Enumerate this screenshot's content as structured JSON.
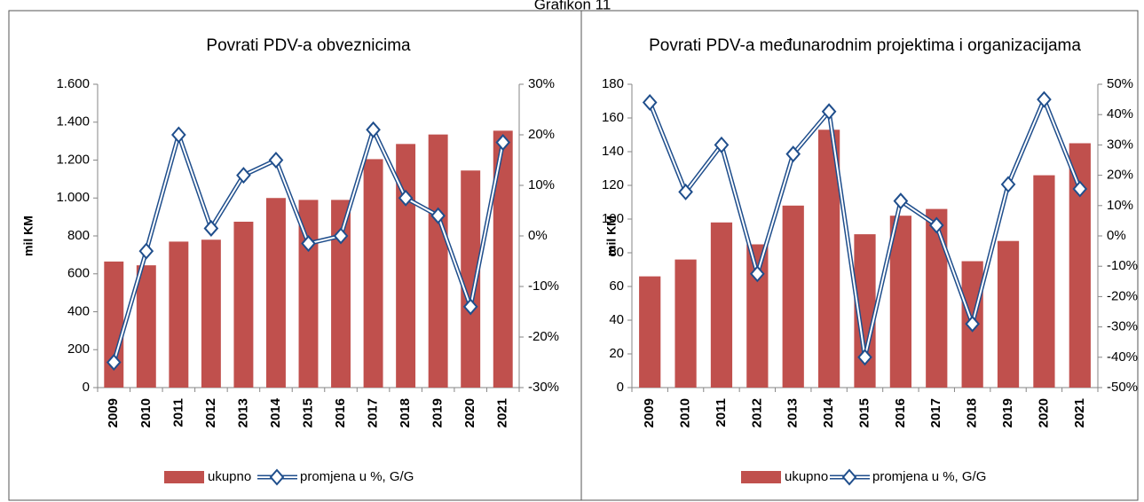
{
  "header": "Grafikon 11",
  "chart_data": [
    {
      "type": "bar_line",
      "title": "Povrati PDV-a obveznicima",
      "y_label": "mil KM",
      "categories": [
        "2009",
        "2010",
        "2011",
        "2012",
        "2013",
        "2014",
        "2015",
        "2016",
        "2017",
        "2018",
        "2019",
        "2020",
        "2021"
      ],
      "series": [
        {
          "name": "ukupno",
          "color": "#c0504d",
          "values": [
            665,
            645,
            770,
            780,
            875,
            1000,
            990,
            990,
            1205,
            1285,
            1335,
            1145,
            1355
          ]
        },
        {
          "name": "promjena u %, G/G",
          "color": "#1f4e8c",
          "axis": "y2",
          "values": [
            -25,
            -3,
            20,
            1.5,
            12,
            15,
            -1.5,
            0,
            21,
            7.5,
            4,
            -14,
            18.5
          ]
        }
      ],
      "ylim": [
        0,
        1600
      ],
      "yticks": [
        0,
        200,
        400,
        600,
        800,
        {
          "value": 1000,
          "label": "1.000"
        },
        {
          "value": 1200,
          "label": "1.200"
        },
        {
          "value": 1400,
          "label": "1.400"
        },
        {
          "value": 1600,
          "label": "1.600"
        }
      ],
      "y2lim": [
        -30,
        30
      ],
      "y2ticks": [
        {
          "value": -30,
          "label": "-30%"
        },
        {
          "value": -20,
          "label": "-20%"
        },
        {
          "value": -10,
          "label": "-10%"
        },
        {
          "value": 0,
          "label": "0%"
        },
        {
          "value": 10,
          "label": "10%"
        },
        {
          "value": 20,
          "label": "20%"
        },
        {
          "value": 30,
          "label": "30%"
        }
      ],
      "grid": false,
      "legend": "bottom"
    },
    {
      "type": "bar_line",
      "title": "Povrati PDV-a međunarodnim projektima i organizacijama",
      "y_label": "mil KM",
      "categories": [
        "2009",
        "2010",
        "2011",
        "2012",
        "2013",
        "2014",
        "2015",
        "2016",
        "2017",
        "2018",
        "2019",
        "2020",
        "2021"
      ],
      "series": [
        {
          "name": "ukupno",
          "color": "#c0504d",
          "values": [
            66,
            76,
            98,
            85,
            108,
            153,
            91,
            102,
            106,
            75,
            87,
            126,
            145
          ]
        },
        {
          "name": "promjena u %, G/G",
          "color": "#1f4e8c",
          "axis": "y2",
          "values": [
            44,
            14.5,
            30,
            -12.5,
            27,
            41,
            -40,
            11.5,
            3.5,
            -29,
            17,
            45,
            15.5
          ]
        }
      ],
      "ylim": [
        0,
        180
      ],
      "yticks": [
        0,
        20,
        40,
        60,
        80,
        100,
        120,
        140,
        160,
        180
      ],
      "y2lim": [
        -50,
        50
      ],
      "y2ticks": [
        {
          "value": -50,
          "label": "-50%"
        },
        {
          "value": -40,
          "label": "-40%"
        },
        {
          "value": -30,
          "label": "-30%"
        },
        {
          "value": -20,
          "label": "-20%"
        },
        {
          "value": -10,
          "label": "-10%"
        },
        {
          "value": 0,
          "label": "0%"
        },
        {
          "value": 10,
          "label": "10%"
        },
        {
          "value": 20,
          "label": "20%"
        },
        {
          "value": 30,
          "label": "30%"
        },
        {
          "value": 40,
          "label": "40%"
        },
        {
          "value": 50,
          "label": "50%"
        }
      ],
      "grid": false,
      "legend": "bottom"
    }
  ]
}
